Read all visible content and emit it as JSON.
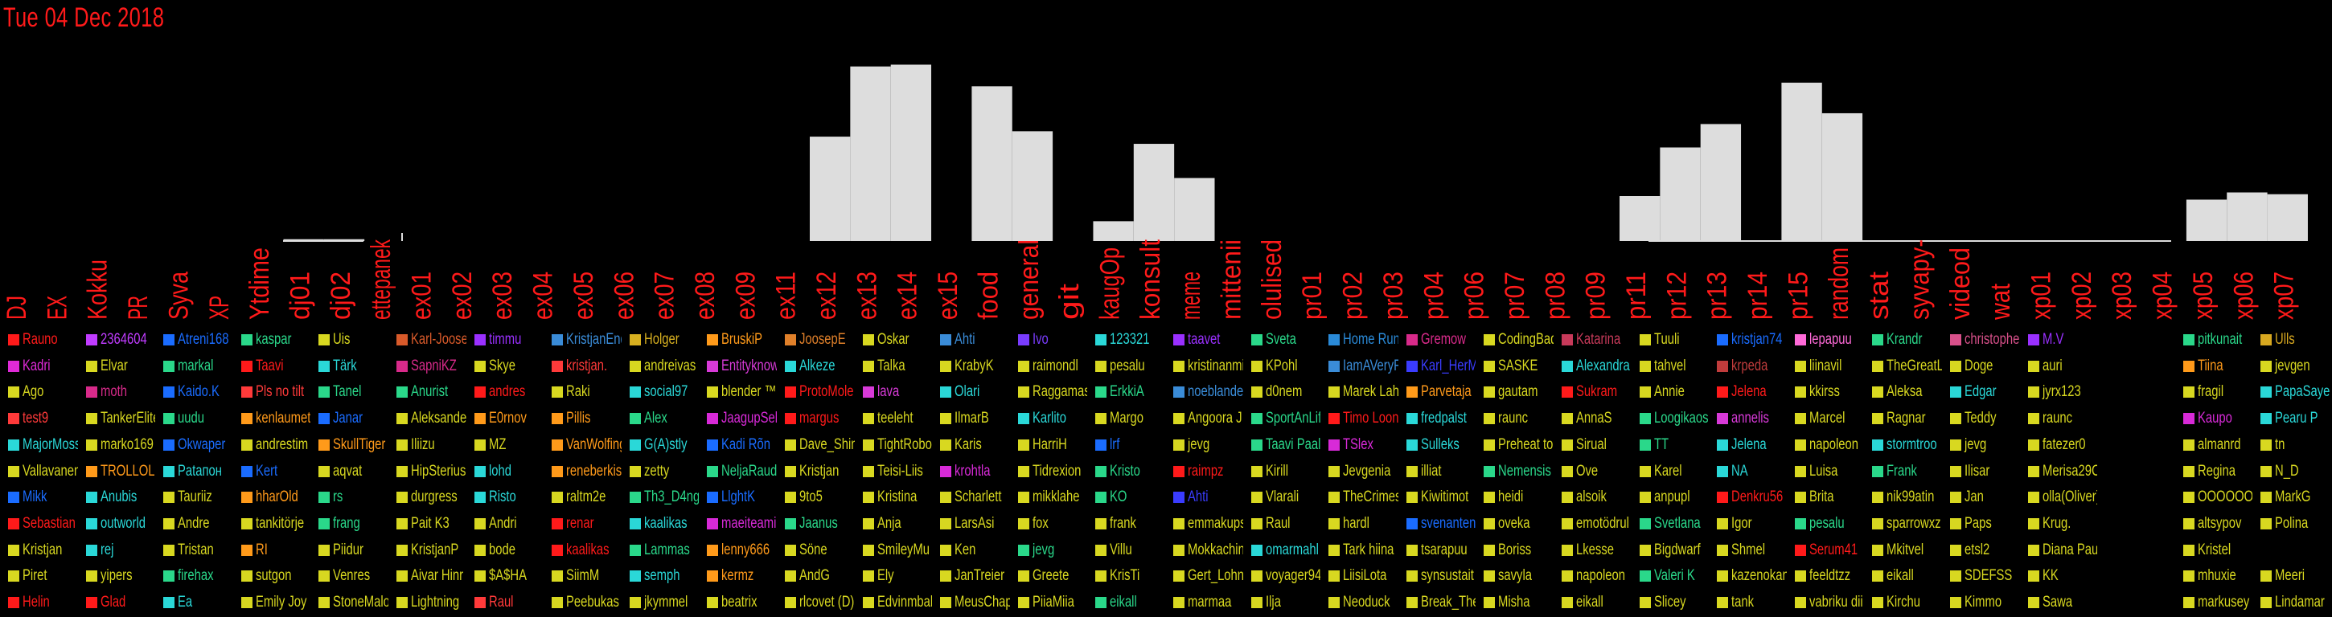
{
  "header": {
    "date": "Tue 04 Dec 2018"
  },
  "colors": {
    "text": "#ff1a1a",
    "bar": "#dddddd",
    "background": "#000000"
  },
  "chart_data": {
    "type": "bar",
    "categories": [
      "DJ",
      "EX",
      "Kokku",
      "PR",
      "Syva",
      "XP",
      "Ytdime",
      "dj01",
      "dj02",
      "ettepanek",
      "ex01",
      "ex02",
      "ex03",
      "ex04",
      "ex05",
      "ex06",
      "ex07",
      "ex08",
      "ex09",
      "ex11",
      "ex12",
      "ex13",
      "ex14",
      "ex15",
      "food",
      "general",
      "git",
      "kaugOp",
      "konsult",
      "meme",
      "mittenii",
      "olulised",
      "pr01",
      "pr02",
      "pr03",
      "pr04",
      "pr06",
      "pr07",
      "pr08",
      "pr09",
      "pr11",
      "pr12",
      "pr13",
      "pr14",
      "pr15",
      "random",
      "stat",
      "syvapy-",
      "videod",
      "wat",
      "xp01",
      "xp02",
      "xp03",
      "xp04",
      "xp05",
      "xp06",
      "xp07"
    ],
    "values": [
      0,
      0,
      0,
      0,
      0,
      0,
      0,
      1,
      1,
      0,
      0,
      0,
      0,
      0,
      0,
      0,
      0,
      0,
      0,
      0,
      58,
      97,
      98,
      0,
      86,
      61,
      0,
      11,
      54,
      35,
      0,
      0,
      0,
      0,
      0,
      0,
      0,
      0,
      0,
      0,
      25,
      52,
      65,
      0,
      88,
      71,
      0,
      0,
      0,
      0,
      0,
      0,
      0,
      0,
      23,
      27,
      26
    ],
    "ylim": [
      0,
      100
    ]
  },
  "legend": {
    "rows": [
      [
        "Rauno",
        "2364604",
        "Atreni168",
        "kaspar",
        "Uis",
        "Karl-Joosep",
        "timmu",
        "KristjanEnd",
        "Holger",
        "BruskiP",
        "JoosepE",
        "Oskar",
        "Ahti",
        "Ivo",
        "123321",
        "taavet",
        "Sveta",
        "Home Run",
        "Gremow",
        "CodingBadly",
        "Katarina",
        "Tuuli",
        "kristjan74",
        "lepapuu",
        "Krandr",
        "christopher",
        "M.V",
        "",
        "pitkunait",
        "Ulls"
      ],
      [
        "Kadri",
        "Elvar",
        "markal",
        "Taavi",
        "Tärk",
        "SapniKZ",
        "Skye",
        "kristjan.",
        "andreivas",
        "Entityknow",
        "Alkeze",
        "Talka",
        "KrabyK",
        "raimondl",
        "pesalu",
        "kristinanmi",
        "KPohl",
        "IamAVeryFu",
        "Karl_HerM",
        "SASKE",
        "Alexandra",
        "tahvel",
        "krpeda",
        "liinavil",
        "TheGreatL",
        "Doge",
        "auri",
        "",
        "Tiina",
        "jevgen"
      ],
      [
        "Ago",
        "moth",
        "Kaido.K",
        "Pls no tilt",
        "Tanel",
        "Anurist",
        "andres",
        "Raki",
        "social97",
        "blender ™",
        "ProtoMole",
        "lava",
        "Olari",
        "Raggamas",
        "ErkkiA",
        "noeblande",
        "d0nem",
        "Marek Lah",
        "Parvetaja",
        "gautam",
        "Sukram",
        "Annie",
        "Jelena",
        "kkirss",
        "Aleksa",
        "Edgar",
        "jyrx123",
        "",
        "fragil",
        "PapaSayer"
      ],
      [
        "test9",
        "TankerElite",
        "uudu",
        "kenlaumet",
        "Janar",
        "Aleksander",
        "E0rnov",
        "Pillis",
        "Alex",
        "JaagupSel",
        "margus",
        "teeleht",
        "IlmarB",
        "Karlito",
        "Margo",
        "Angoora J",
        "SportAnLif",
        "Timo Loon",
        "fredpalst",
        "raunc",
        "AnnaS",
        "Loogikaos",
        "annelis",
        "Marcel",
        "Ragnar",
        "Teddy",
        "raunc",
        "",
        "Kaupo",
        "Pearu P"
      ],
      [
        "MajorMoss",
        "marko169",
        "Okwaper",
        "andrestim",
        "SkullTiger",
        "Iliizu",
        "MZ",
        "VanWolfing",
        "G(A)stly",
        "Kadi Rõn",
        "Dave_Shin",
        "TightRobot",
        "Karis",
        "HarriH",
        "lrf",
        "jevg",
        "Taavi Paal",
        "TSlex",
        "Sulleks",
        "Preheat to",
        "Sirual",
        "TT",
        "Jelena",
        "napoleon",
        "stormtroo",
        "jevg",
        "fatezer0",
        "",
        "almanrd",
        "tn"
      ],
      [
        "Vallavanen",
        "TROLLOLOL",
        "Pataпон",
        "Kert",
        "aqvat",
        "HipSterius",
        "lohd",
        "reneberkis",
        "zetty",
        "NeljaRaudi",
        "Kristjan",
        "Teisi-Liis",
        "krohtla",
        "Tidrexion",
        "Kristo",
        "raimpz",
        "Kirill",
        "Jevgenia",
        "illiat",
        "Nemensis",
        "Ove",
        "Karel",
        "NA",
        "Luisa",
        "Frank",
        "Ilisar",
        "Merisa29C",
        "",
        "Regina",
        "N_D"
      ],
      [
        "Mikk",
        "Anubis",
        "Tauriiz",
        "hharOld",
        "rs",
        "durgress",
        "Risto",
        "raltm2e",
        "Th3_D4ng",
        "LlghtK",
        "9to5",
        "Kristina",
        "Scharlett",
        "mikklahe",
        "KO",
        "Ahti",
        "Vlarali",
        "TheCrimes",
        "Kiwitimot",
        "heidi",
        "alsoik",
        "anpupl",
        "Denkru56",
        "Brita",
        "nik99atin",
        "Jan",
        "olla(Oliver)",
        "",
        "OOOOOOOO",
        "MarkG"
      ],
      [
        "Sebastian",
        "outworld",
        "Andre",
        "tankitörje",
        "frang",
        "Pait K3",
        "Andri",
        "renar",
        "kaalikas",
        "maeiteami",
        "Jaanus",
        "Anja",
        "LarsAsi",
        "fox",
        "frank",
        "emmakups",
        "Raul",
        "hardl",
        "svenanten",
        "oveka",
        "emotödrul",
        "Svetlana",
        "Igor",
        "pesalu",
        "sparrowxz",
        "Paps",
        "Krug.",
        "",
        "altsypov",
        "Polina"
      ],
      [
        "Kristjan",
        "rej",
        "Tristan",
        "RI",
        "Piidur",
        "KristjanP",
        "bode",
        "kaalikas",
        "Lammas",
        "lenny666",
        "Söne",
        "SmileyMu",
        "Ken",
        "jevg",
        "Villu",
        "Mokkachin",
        "omarmahl",
        "Tark hiina",
        "tsarapuu",
        "Boriss",
        "Lkesse",
        "Bigdwarf",
        "Shmel",
        "Serum41",
        "Mkitvel",
        "etsl2",
        "Diana Paul",
        "",
        "Kristel",
        ""
      ],
      [
        "Piret",
        "yipers",
        "firehax",
        "sutgon",
        "Venres",
        "Aivar Hinr",
        "$A$HA",
        "SiimM",
        "semph",
        "kermz",
        "AndG",
        "Ely",
        "JanTreier",
        "Greete",
        "KrisTi",
        "Gert_Lohn",
        "voyager94",
        "LiisiLota",
        "synsustait",
        "savyla",
        "napoleon",
        "Valeri K",
        "kazenokan",
        "feeldtzz",
        "eikall",
        "SDEFSS",
        "KK",
        "",
        "mhuxie",
        "Meeri"
      ],
      [
        "Helin",
        "Glad",
        "Ea",
        "Emily Joy",
        "StoneMalo",
        "Lightning",
        "Raul",
        "Peebukas",
        "jkymmel",
        "beatrix",
        "rlcovet (D)",
        "Edvinmbal",
        "MeusChap",
        "PiiaMiia",
        "eikall",
        "marmaa",
        "Ilja",
        "Neoduck",
        "Break_The",
        "Misha",
        "eikall",
        "Slicey",
        "tank",
        "vabriku dii",
        "Kirchu",
        "Kimmo",
        "Sawa",
        "",
        "markusey",
        "Lindamar"
      ]
    ],
    "swatch_colors": [
      [
        "#ff1a1a",
        "#c03cff",
        "#1a6cff",
        "#2ad88a",
        "#d8d820",
        "#d85a2a",
        "#9a30ff",
        "#3a8cd8",
        "#d8b020",
        "#ff9a1a",
        "#e0802a",
        "#d8d820",
        "#3a8cd8",
        "#7a3cff",
        "#2ad8d8",
        "#9a30ff",
        "#2ad88a",
        "#2a8ad8",
        "#d82a8a",
        "#d8d820",
        "#c83a5a",
        "#d8d820",
        "#1a6cff",
        "#ff6ad8",
        "#2ad88a",
        "#d8508a",
        "#9a30ff",
        "#000000",
        "#2ad88a",
        "#d8a820"
      ],
      [
        "#e02ad8",
        "#d8d820",
        "#2ad88a",
        "#ff1a1a",
        "#2ad8d8",
        "#d82a8a",
        "#d8d820",
        "#ff3a3a",
        "#d8d820",
        "#d83ad8",
        "#2ad8d8",
        "#d8d820",
        "#d8d820",
        "#d8d820",
        "#d8d820",
        "#d8d820",
        "#d8d820",
        "#3a8cd8",
        "#3a3cff",
        "#d8d820",
        "#2ad8d8",
        "#d8d820",
        "#c03c3c",
        "#d8d820",
        "#d8d820",
        "#d8d820",
        "#d8d820",
        "#000000",
        "#ff9a1a",
        "#d8d820"
      ],
      [
        "#d8d820",
        "#d82a8a",
        "#1a6cff",
        "#ff3a3a",
        "#2ad88a",
        "#2ad88a",
        "#ff1a1a",
        "#d8d820",
        "#2ad8d8",
        "#d8d820",
        "#ff1a1a",
        "#d83ad8",
        "#2ad8d8",
        "#d8d820",
        "#2ad88a",
        "#3a8cd8",
        "#d8d820",
        "#d8d820",
        "#ff9a1a",
        "#d8d820",
        "#ff1a1a",
        "#d8d820",
        "#ff1a1a",
        "#d8d820",
        "#d8d820",
        "#2ad8d8",
        "#d8d820",
        "#000000",
        "#d8d820",
        "#2ad8d8"
      ],
      [
        "#ff3a3a",
        "#d8d820",
        "#2ad88a",
        "#ff9a1a",
        "#1a6cff",
        "#d8d820",
        "#ff9a1a",
        "#ff9a1a",
        "#2ad88a",
        "#d82ad8",
        "#ff1a1a",
        "#d8d820",
        "#d8d820",
        "#2ad8d8",
        "#d8d820",
        "#d8d820",
        "#2ad88a",
        "#ff1a1a",
        "#2ad8d8",
        "#d8d820",
        "#d8d820",
        "#2ad88a",
        "#d83ad8",
        "#d8d820",
        "#d8d820",
        "#d8d820",
        "#d8d820",
        "#000000",
        "#d82ad8",
        "#2ad8d8"
      ],
      [
        "#2ad8d8",
        "#d8d820",
        "#1a6cff",
        "#d8d820",
        "#ff9a1a",
        "#d8d820",
        "#d8d820",
        "#ff9a1a",
        "#2ad8d8",
        "#1a6cff",
        "#d8d820",
        "#d8d820",
        "#d8d820",
        "#d8d820",
        "#1a6cff",
        "#d8d820",
        "#2ad88a",
        "#d82ad8",
        "#2ad8d8",
        "#d8d820",
        "#d8d820",
        "#2ad88a",
        "#2ad8d8",
        "#d8d820",
        "#2ad8d8",
        "#d8d820",
        "#d8d820",
        "#000000",
        "#d8d820",
        "#d8d820"
      ],
      [
        "#d8d820",
        "#ff9a1a",
        "#2ad8d8",
        "#1a6cff",
        "#d8d820",
        "#d8d820",
        "#2ad8d8",
        "#ff9a1a",
        "#d8d820",
        "#2ad88a",
        "#d8d820",
        "#d8d820",
        "#d82ad8",
        "#d8d820",
        "#2ad88a",
        "#ff1a1a",
        "#d8d820",
        "#d8d820",
        "#d8d820",
        "#2ad88a",
        "#d8d820",
        "#d8d820",
        "#2ad8d8",
        "#d8d820",
        "#2ad88a",
        "#d8d820",
        "#d8d820",
        "#000000",
        "#d8d820",
        "#d8d820"
      ],
      [
        "#1a6cff",
        "#2ad8d8",
        "#d8d820",
        "#ff9a1a",
        "#2ad88a",
        "#d8d820",
        "#2ad8d8",
        "#d8d820",
        "#2ad88a",
        "#1a6cff",
        "#d8d820",
        "#d8d820",
        "#d8d820",
        "#d8d820",
        "#2ad88a",
        "#3a3cff",
        "#d8d820",
        "#d8d820",
        "#d8d820",
        "#d8d820",
        "#d8d820",
        "#d8d820",
        "#ff1a1a",
        "#d8d820",
        "#d8d820",
        "#d8d820",
        "#d8d820",
        "#000000",
        "#d8d820",
        "#d8d820"
      ],
      [
        "#ff1a1a",
        "#2ad8d8",
        "#d8d820",
        "#d8d820",
        "#2ad88a",
        "#d8d820",
        "#d8d820",
        "#ff1a1a",
        "#2ad8d8",
        "#d82ad8",
        "#2ad88a",
        "#d8d820",
        "#d8d820",
        "#d8d820",
        "#d8d820",
        "#d8d820",
        "#d8d820",
        "#d8d820",
        "#1a6cff",
        "#d8d820",
        "#d8d820",
        "#2ad88a",
        "#d8d820",
        "#2ad88a",
        "#d8d820",
        "#d8d820",
        "#d8d820",
        "#000000",
        "#d8d820",
        "#d8d820"
      ],
      [
        "#d8d820",
        "#2ad8d8",
        "#d8d820",
        "#ff9a1a",
        "#d8d820",
        "#d8d820",
        "#d8d820",
        "#ff1a1a",
        "#2ad88a",
        "#ff9a1a",
        "#d8d820",
        "#d8d820",
        "#d8d820",
        "#2ad88a",
        "#d8d820",
        "#d8d820",
        "#2ad8d8",
        "#d8d820",
        "#d8d820",
        "#d8d820",
        "#d8d820",
        "#d8d820",
        "#d8d820",
        "#ff1a1a",
        "#d8d820",
        "#d8d820",
        "#d8d820",
        "#000000",
        "#d8d820",
        "#d8d820"
      ],
      [
        "#d8d820",
        "#d8d820",
        "#2ad88a",
        "#d8d820",
        "#d8d820",
        "#d8d820",
        "#d8d820",
        "#d8d820",
        "#2ad8d8",
        "#ff9a1a",
        "#d8d820",
        "#d8d820",
        "#d8d820",
        "#d8d820",
        "#d8d820",
        "#d8d820",
        "#d8d820",
        "#d8d820",
        "#d8d820",
        "#d8d820",
        "#d8d820",
        "#2ad88a",
        "#d8d820",
        "#d8d820",
        "#d8d820",
        "#d8d820",
        "#d8d820",
        "#000000",
        "#d8d820",
        "#d8d820"
      ],
      [
        "#ff1a1a",
        "#ff1a1a",
        "#2ad8d8",
        "#d8d820",
        "#d8d820",
        "#d8d820",
        "#ff3a3a",
        "#d8d820",
        "#d8d820",
        "#d8d820",
        "#d8d820",
        "#d8d820",
        "#d8d820",
        "#d8d820",
        "#2ad88a",
        "#d8d820",
        "#d8d820",
        "#d8d820",
        "#d8d820",
        "#d8d820",
        "#d8d820",
        "#d8d820",
        "#d8d820",
        "#d8d820",
        "#d8d820",
        "#d8d820",
        "#d8d820",
        "#000000",
        "#d8d820",
        "#d8d820"
      ]
    ]
  }
}
